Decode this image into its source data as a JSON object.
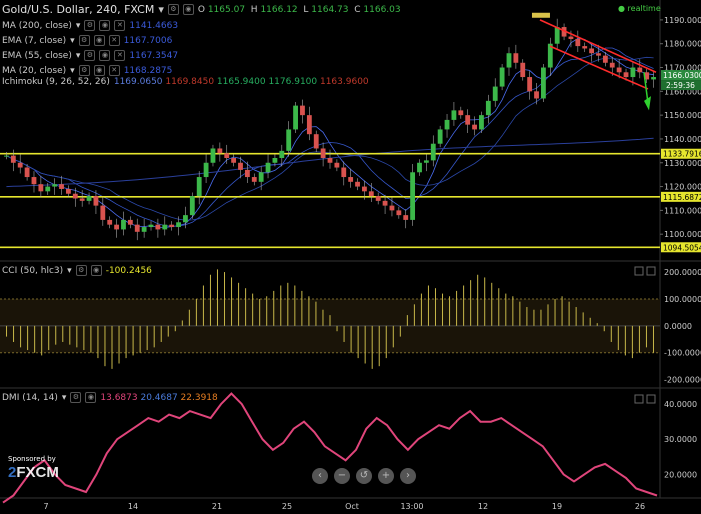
{
  "header": {
    "symbol": "Gold/U.S. Dollar, 240, FXCM",
    "open_label": "O",
    "open": "1165.07",
    "high_label": "H",
    "high": "1166.12",
    "low_label": "L",
    "low": "1164.73",
    "close_label": "C",
    "close": "1166.03",
    "realtime": "realtime"
  },
  "indicators": [
    {
      "label": "MA (200, close)",
      "value": "1141.4663",
      "color": "#3b5bdb"
    },
    {
      "label": "EMA (7, close)",
      "value": "1167.7006",
      "color": "#3b5bdb"
    },
    {
      "label": "EMA (55, close)",
      "value": "1167.3547",
      "color": "#3b5bdb"
    },
    {
      "label": "MA (20, close)",
      "value": "1168.2875",
      "color": "#3b5bdb"
    }
  ],
  "ichimoku": {
    "label": "Ichimoku (9, 26, 52, 26)",
    "values": [
      {
        "v": "1169.0650",
        "color": "#5b7bdb"
      },
      {
        "v": "1169.8450",
        "color": "#c0392b"
      },
      {
        "v": "1165.9400",
        "color": "#27ae60"
      },
      {
        "v": "1176.9100",
        "color": "#27ae60"
      },
      {
        "v": "1163.9600",
        "color": "#c0392b"
      }
    ]
  },
  "cci": {
    "label": "CCI (50, hlc3)",
    "value": "-100.2456"
  },
  "dmi": {
    "label": "DMI (14, 14)",
    "values": [
      {
        "v": "13.6873",
        "color": "#e0457b"
      },
      {
        "v": "20.4687",
        "color": "#4a7bdb"
      },
      {
        "v": "22.3918",
        "color": "#e67e22"
      }
    ]
  },
  "sponsor": {
    "text": "Sponsored by",
    "logo": "FXCM"
  },
  "nav_icons": [
    "chevron-left-icon",
    "minus-icon",
    "reset-icon",
    "plus-icon",
    "chevron-right-icon"
  ],
  "nav_glyphs": [
    "‹",
    "−",
    "↺",
    "+",
    "›"
  ],
  "colors": {
    "up": "#3cb84a",
    "down": "#d9534f",
    "level": "#e6e62e",
    "cci_bar": "#c8b84a",
    "dmi": "#e0457b",
    "ma": "#3b5bdb",
    "channel": "#ff2b2b",
    "arrow": "#2fd12f"
  },
  "chart_data": [
    {
      "type": "candlestick",
      "title": "Gold/U.S. Dollar, 240, FXCM",
      "x_tick_labels": [
        "7",
        "14",
        "21",
        "25",
        "Oct",
        "13:00",
        "12",
        "19",
        "26"
      ],
      "ylim": [
        1090,
        1195
      ],
      "y_tick_labels": [
        "1190.0000",
        "1180.0000",
        "1170.0000",
        "1160.0000",
        "1150.0000",
        "1140.0000",
        "1130.0000",
        "1120.0000",
        "1110.0000",
        "1100.0000"
      ],
      "horizontal_levels": [
        {
          "value": 1133.7916,
          "label": "1133.7916"
        },
        {
          "value": 1115.6872,
          "label": "1115.6872"
        },
        {
          "value": 1094.5054,
          "label": "1094.5054"
        }
      ],
      "current_price_label": "1166.0300",
      "countdown_label": "2:59:36",
      "close_path": [
        1133,
        1130,
        1128,
        1124,
        1121,
        1118,
        1120,
        1121,
        1119,
        1117,
        1115,
        1114,
        1116,
        1112,
        1106,
        1104,
        1102,
        1106,
        1104,
        1101,
        1103,
        1104,
        1102,
        1104,
        1103,
        1105,
        1108,
        1116,
        1124,
        1130,
        1136,
        1134,
        1132,
        1130,
        1127,
        1124,
        1122,
        1126,
        1130,
        1132,
        1135,
        1144,
        1154,
        1150,
        1142,
        1136,
        1132,
        1130,
        1128,
        1124,
        1122,
        1120,
        1118,
        1116,
        1114,
        1112,
        1110,
        1108,
        1106,
        1126,
        1130,
        1131,
        1138,
        1144,
        1148,
        1152,
        1150,
        1146,
        1144,
        1150,
        1156,
        1162,
        1170,
        1176,
        1172,
        1166,
        1160,
        1157,
        1170,
        1180,
        1187,
        1183,
        1182,
        1179,
        1178,
        1176,
        1175,
        1172,
        1170,
        1168,
        1166,
        1170,
        1168,
        1165,
        1166
      ]
    },
    {
      "type": "bar",
      "title": "CCI (50, hlc3)",
      "ylim": [
        -220,
        230
      ],
      "y_tick_labels": [
        "200.0000",
        "100.0000",
        "0.0000",
        "-100.0000",
        "-200.0000"
      ],
      "values": [
        -40,
        -60,
        -80,
        -90,
        -100,
        -110,
        -90,
        -70,
        -60,
        -70,
        -80,
        -90,
        -100,
        -120,
        -150,
        -160,
        -140,
        -120,
        -110,
        -100,
        -90,
        -80,
        -60,
        -40,
        -20,
        20,
        60,
        100,
        150,
        190,
        210,
        200,
        180,
        160,
        140,
        120,
        100,
        110,
        130,
        150,
        160,
        150,
        130,
        110,
        90,
        60,
        40,
        -20,
        -60,
        -100,
        -120,
        -140,
        -160,
        -150,
        -120,
        -80,
        -40,
        40,
        80,
        120,
        150,
        140,
        120,
        110,
        130,
        150,
        170,
        190,
        180,
        160,
        140,
        120,
        110,
        90,
        70,
        60,
        60,
        80,
        100,
        110,
        90,
        70,
        50,
        30,
        10,
        -20,
        -60,
        -90,
        -110,
        -120,
        -100,
        -80,
        -100
      ]
    },
    {
      "type": "line",
      "title": "DMI (14, 14)",
      "ylim": [
        15,
        44
      ],
      "y_tick_labels": [
        "40.0000",
        "30.0000",
        "20.0000"
      ],
      "series": [
        {
          "name": "DMI",
          "values": [
            12,
            14,
            18,
            22,
            24,
            20,
            17,
            16,
            15,
            20,
            26,
            30,
            32,
            34,
            36,
            35,
            37,
            36,
            38,
            37,
            36,
            40,
            43,
            40,
            35,
            30,
            27,
            29,
            33,
            35,
            32,
            28,
            26,
            24,
            27,
            33,
            36,
            34,
            30,
            27,
            30,
            32,
            34,
            33,
            36,
            38,
            35,
            35,
            36,
            34,
            32,
            30,
            28,
            24,
            20,
            18,
            20,
            22,
            23,
            21,
            19,
            16,
            15,
            14
          ]
        }
      ]
    }
  ]
}
